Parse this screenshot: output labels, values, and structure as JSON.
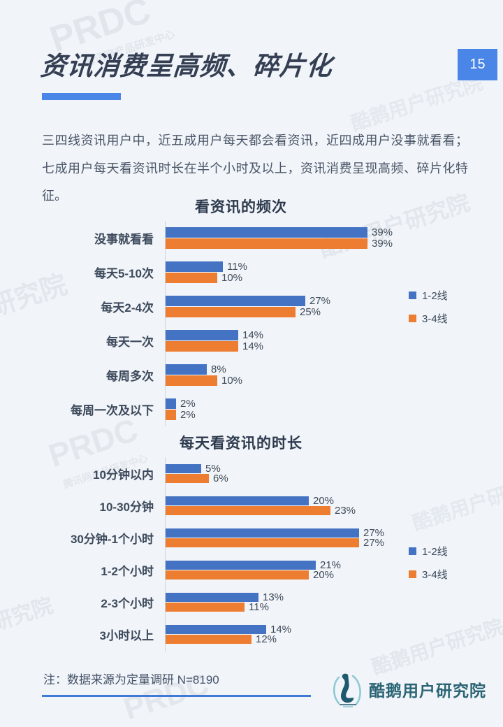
{
  "page": {
    "number": "15",
    "title": "资讯消费呈高频、碎片化",
    "intro": "三四线资讯用户中，近五成用户每天都会看资讯，近四成用户没事就看看；七成用户每天看资讯时长在半个小时及以上，资讯消费呈现高频、碎片化特征。",
    "note": "注：数据来源为定量调研 N=8190",
    "brand": "酷鹅用户研究院"
  },
  "colors": {
    "accent_blue": "#4A86E8",
    "series1_blue": "#4573C4",
    "series2_orange": "#ED7D31",
    "logo_teal": "#2B6575"
  },
  "legend": [
    {
      "label": "1-2线",
      "color": "#4573C4"
    },
    {
      "label": "3-4线",
      "color": "#ED7D31"
    }
  ],
  "chart_data": [
    {
      "type": "bar",
      "orientation": "horizontal",
      "title": "看资讯的频次",
      "unit": "%",
      "categories": [
        "没事就看看",
        "每天5-10次",
        "每天2-4次",
        "每天一次",
        "每周多次",
        "每周一次及以下"
      ],
      "series": [
        {
          "name": "1-2线",
          "color": "#4573C4",
          "values": [
            39,
            11,
            27,
            14,
            8,
            2
          ]
        },
        {
          "name": "3-4线",
          "color": "#ED7D31",
          "values": [
            39,
            10,
            25,
            14,
            10,
            2
          ]
        }
      ],
      "legend_position": "right",
      "value_labels": true,
      "grid": false
    },
    {
      "type": "bar",
      "orientation": "horizontal",
      "title": "每天看资讯的时长",
      "unit": "%",
      "categories": [
        "10分钟以内",
        "10-30分钟",
        "30分钟-1个小时",
        "1-2个小时",
        "2-3个小时",
        "3小时以上"
      ],
      "series": [
        {
          "name": "1-2线",
          "color": "#4573C4",
          "values": [
            5,
            20,
            27,
            21,
            13,
            14
          ]
        },
        {
          "name": "3-4线",
          "color": "#ED7D31",
          "values": [
            6,
            23,
            27,
            20,
            11,
            12
          ]
        }
      ],
      "legend_position": "right",
      "value_labels": true,
      "grid": false
    }
  ],
  "watermarks": [
    "PRDC",
    "腾讯网产品研发中心",
    "酷鹅用户研究院",
    "酷鹅用户研究院",
    "研究院",
    "PRDC",
    "腾讯网产品研发中心",
    "酷鹅用户研究院",
    "研究院",
    "酷鹅用户研究院",
    "PRDC"
  ]
}
